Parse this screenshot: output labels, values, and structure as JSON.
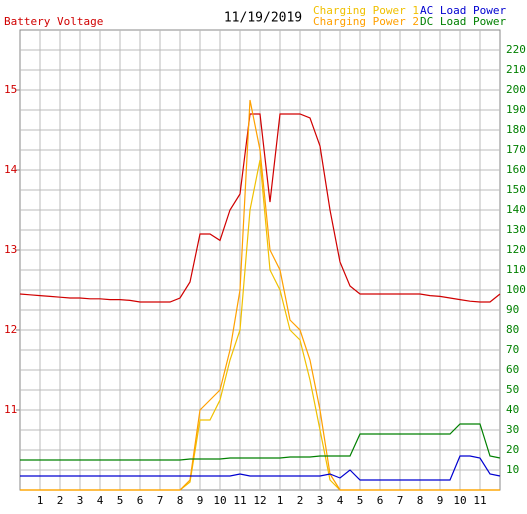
{
  "chart_data": {
    "type": "line",
    "title": "11/19/2019",
    "x": [
      0,
      0.5,
      1,
      1.5,
      2,
      2.5,
      3,
      3.5,
      4,
      4.5,
      5,
      5.5,
      6,
      6.5,
      7,
      7.5,
      8,
      8.5,
      9,
      9.5,
      10,
      10.5,
      11,
      11.5,
      12,
      12.5,
      13,
      13.5,
      14,
      14.5,
      15,
      15.5,
      16,
      16.5,
      17,
      17.5,
      18,
      18.5,
      19,
      19.5,
      20,
      20.5,
      21,
      21.5,
      22,
      22.5,
      23,
      23.5,
      24
    ],
    "xlim": [
      0,
      24
    ],
    "xticks": [
      1,
      2,
      3,
      4,
      5,
      6,
      7,
      8,
      9,
      10,
      11,
      12,
      {
        "value": 13,
        "label": "1"
      },
      {
        "value": 14,
        "label": "2"
      },
      {
        "value": 15,
        "label": "3"
      },
      {
        "value": 16,
        "label": "4"
      },
      {
        "value": 17,
        "label": "5"
      },
      {
        "value": 18,
        "label": "6"
      },
      {
        "value": 19,
        "label": "7"
      },
      {
        "value": 20,
        "label": "8"
      },
      {
        "value": 21,
        "label": "9"
      },
      {
        "value": 22,
        "label": "10"
      },
      {
        "value": 23,
        "label": "11"
      }
    ],
    "ylim": [
      10,
      15.75
    ],
    "yticks": [
      11,
      12,
      13,
      14,
      15
    ],
    "ycolor": "#d00000",
    "y2lim": [
      0,
      230
    ],
    "y2ticks": [
      10,
      20,
      30,
      40,
      50,
      60,
      70,
      80,
      90,
      100,
      110,
      120,
      130,
      140,
      150,
      160,
      170,
      180,
      190,
      200,
      210,
      220
    ],
    "y2color": "#008000",
    "grid": true,
    "series": [
      {
        "name": "Battery Voltage",
        "color": "#d00000",
        "values": [
          12.45,
          12.44,
          12.43,
          12.42,
          12.41,
          12.4,
          12.4,
          12.39,
          12.39,
          12.38,
          12.38,
          12.37,
          12.35,
          12.35,
          12.35,
          12.35,
          12.4,
          12.6,
          13.2,
          13.2,
          13.12,
          13.5,
          13.7,
          14.7,
          14.7,
          13.6,
          14.7,
          14.7,
          14.7,
          14.65,
          14.3,
          13.5,
          12.85,
          12.55,
          12.45,
          12.45,
          12.45,
          12.45,
          12.45,
          12.45,
          12.45,
          12.43,
          12.42,
          12.4,
          12.38,
          12.36,
          12.35,
          12.35,
          12.45
        ]
      },
      {
        "name": "Charging Power 1",
        "color": "#f0c000",
        "axis": "y2",
        "values": [
          0,
          0,
          0,
          0,
          0,
          0,
          0,
          0,
          0,
          0,
          0,
          0,
          0,
          0,
          0,
          0,
          0,
          4,
          35,
          35,
          45,
          65,
          80,
          140,
          165,
          110,
          100,
          80,
          75,
          55,
          30,
          5,
          0,
          0,
          0,
          0,
          0,
          0,
          0,
          0,
          0,
          0,
          0,
          0,
          0,
          0,
          0,
          0,
          0
        ]
      },
      {
        "name": "Charging Power 2",
        "color": "#ffa000",
        "axis": "y2",
        "values": [
          0,
          0,
          0,
          0,
          0,
          0,
          0,
          0,
          0,
          0,
          0,
          0,
          0,
          0,
          0,
          0,
          0,
          5,
          40,
          45,
          50,
          70,
          100,
          195,
          170,
          120,
          110,
          85,
          80,
          65,
          40,
          8,
          0,
          0,
          0,
          0,
          0,
          0,
          0,
          0,
          0,
          0,
          0,
          0,
          0,
          0,
          0,
          0,
          0
        ]
      },
      {
        "name": "AC Load Power",
        "color": "#0000d0",
        "axis": "y2",
        "values": [
          7,
          7,
          7,
          7,
          7,
          7,
          7,
          7,
          7,
          7,
          7,
          7,
          7,
          7,
          7,
          7,
          7,
          7,
          7,
          7,
          7,
          7,
          8,
          7,
          7,
          7,
          7,
          7,
          7,
          7,
          7,
          8,
          6,
          10,
          5,
          5,
          5,
          5,
          5,
          5,
          5,
          5,
          5,
          5,
          17,
          17,
          16,
          8,
          7
        ]
      },
      {
        "name": "DC Load Power",
        "color": "#008000",
        "axis": "y2",
        "values": [
          15,
          15,
          15,
          15,
          15,
          15,
          15,
          15,
          15,
          15,
          15,
          15,
          15,
          15,
          15,
          15,
          15,
          15.5,
          15.5,
          15.5,
          15.5,
          16,
          16,
          16,
          16,
          16,
          16,
          16.5,
          16.5,
          16.5,
          17,
          17,
          17,
          17,
          28,
          28,
          28,
          28,
          28,
          28,
          28,
          28,
          28,
          28,
          33,
          33,
          33,
          17,
          16
        ]
      }
    ]
  }
}
